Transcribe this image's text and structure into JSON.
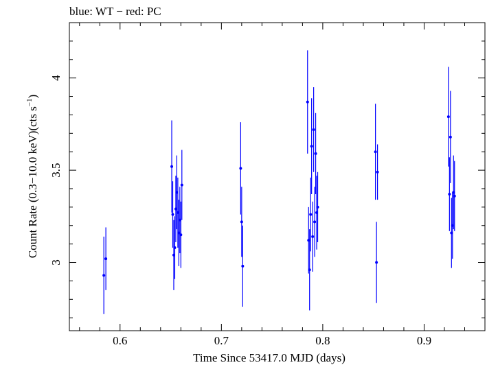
{
  "chart_data": {
    "type": "scatter",
    "title": "blue: WT − red: PC",
    "xlabel": "Time Since 53417.0 MJD (days)",
    "ylabel_prefix": "Count Rate (0.3−10.0 keV)(cts s",
    "ylabel_exp": "−1",
    "ylabel_suffix": ")",
    "xlim": [
      0.55,
      0.96
    ],
    "ylim": [
      2.63,
      4.3
    ],
    "xticks": [
      0.6,
      0.7,
      0.8,
      0.9
    ],
    "xtick_labels": [
      "0.6",
      "0.7",
      "0.8",
      "0.9"
    ],
    "yticks": [
      3,
      3.5,
      4
    ],
    "ytick_labels": [
      "3",
      "3.5",
      "4"
    ],
    "grid": false,
    "colors": {
      "WT": "#0000ff",
      "PC": "#ff0000"
    },
    "series": [
      {
        "mode": "WT",
        "points": [
          {
            "x": 0.584,
            "y": 2.93,
            "yerr": 0.21
          },
          {
            "x": 0.586,
            "y": 3.02,
            "yerr": 0.17
          },
          {
            "x": 0.651,
            "y": 3.52,
            "yerr": 0.25
          },
          {
            "x": 0.652,
            "y": 3.26,
            "yerr": 0.18
          },
          {
            "x": 0.653,
            "y": 3.04,
            "yerr": 0.19
          },
          {
            "x": 0.654,
            "y": 3.08,
            "yerr": 0.17
          },
          {
            "x": 0.655,
            "y": 3.29,
            "yerr": 0.18
          },
          {
            "x": 0.656,
            "y": 3.38,
            "yerr": 0.2
          },
          {
            "x": 0.657,
            "y": 3.27,
            "yerr": 0.19
          },
          {
            "x": 0.658,
            "y": 3.16,
            "yerr": 0.18
          },
          {
            "x": 0.659,
            "y": 3.23,
            "yerr": 0.18
          },
          {
            "x": 0.66,
            "y": 3.15,
            "yerr": 0.18
          },
          {
            "x": 0.661,
            "y": 3.42,
            "yerr": 0.19
          },
          {
            "x": 0.719,
            "y": 3.51,
            "yerr": 0.25
          },
          {
            "x": 0.72,
            "y": 3.22,
            "yerr": 0.19
          },
          {
            "x": 0.721,
            "y": 2.98,
            "yerr": 0.22
          },
          {
            "x": 0.785,
            "y": 3.87,
            "yerr": 0.28
          },
          {
            "x": 0.786,
            "y": 3.12,
            "yerr": 0.18
          },
          {
            "x": 0.787,
            "y": 2.96,
            "yerr": 0.22
          },
          {
            "x": 0.788,
            "y": 3.26,
            "yerr": 0.2
          },
          {
            "x": 0.789,
            "y": 3.63,
            "yerr": 0.26
          },
          {
            "x": 0.79,
            "y": 3.14,
            "yerr": 0.19
          },
          {
            "x": 0.791,
            "y": 3.72,
            "yerr": 0.23
          },
          {
            "x": 0.792,
            "y": 3.22,
            "yerr": 0.19
          },
          {
            "x": 0.793,
            "y": 3.59,
            "yerr": 0.22
          },
          {
            "x": 0.794,
            "y": 3.27,
            "yerr": 0.2
          },
          {
            "x": 0.795,
            "y": 3.3,
            "yerr": 0.19
          },
          {
            "x": 0.852,
            "y": 3.6,
            "yerr": 0.26
          },
          {
            "x": 0.853,
            "y": 3.0,
            "yerr": 0.22
          },
          {
            "x": 0.854,
            "y": 3.49,
            "yerr": 0.15
          },
          {
            "x": 0.924,
            "y": 3.79,
            "yerr": 0.27
          },
          {
            "x": 0.925,
            "y": 3.37,
            "yerr": 0.2
          },
          {
            "x": 0.926,
            "y": 3.68,
            "yerr": 0.25
          },
          {
            "x": 0.927,
            "y": 3.16,
            "yerr": 0.19
          },
          {
            "x": 0.928,
            "y": 3.2,
            "yerr": 0.18
          },
          {
            "x": 0.929,
            "y": 3.38,
            "yerr": 0.2
          },
          {
            "x": 0.93,
            "y": 3.36,
            "yerr": 0.19
          }
        ]
      }
    ]
  }
}
